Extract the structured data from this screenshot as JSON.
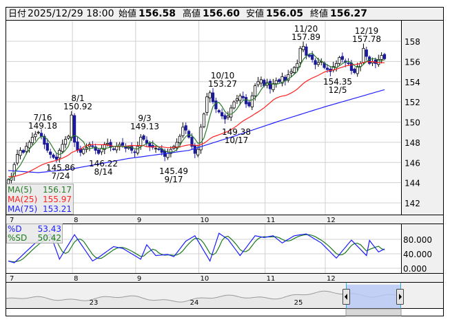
{
  "header": {
    "date_label": "日付",
    "date": "2025/12/29 18:00",
    "open_label": "始値",
    "open": "156.58",
    "high_label": "高値",
    "high": "156.60",
    "low_label": "安値",
    "low": "156.05",
    "close_label": "終値",
    "close": "156.27"
  },
  "colors": {
    "up": "#ffffff",
    "down": "#1a1a9a",
    "ma5": "#2a7a2a",
    "ma25": "#ff2020",
    "ma75": "#2020ff",
    "d": "#1a1aff",
    "sd": "#1a7a1a",
    "high_value": "#ff0000",
    "low_value": "#007000"
  },
  "legend_ma": [
    {
      "label": "MA(5)",
      "value": "156.17"
    },
    {
      "label": "MA(25)",
      "value": "155.97"
    },
    {
      "label": "MA(75)",
      "value": "153.21"
    }
  ],
  "legend_stoch": [
    {
      "label": "%D",
      "value": "53.43"
    },
    {
      "label": "%SD",
      "value": "50.42"
    }
  ],
  "annotations": [
    {
      "date": "7/16",
      "price": "149.18"
    },
    {
      "date": "8/1",
      "price": "150.92"
    },
    {
      "date": "7/24",
      "price": "145.86"
    },
    {
      "date": "8/14",
      "price": "146.22"
    },
    {
      "date": "9/3",
      "price": "149.13"
    },
    {
      "date": "9/17",
      "price": "145.49"
    },
    {
      "date": "10/10",
      "price": "153.27"
    },
    {
      "date": "10/17",
      "price": "149.38"
    },
    {
      "date": "11/20",
      "price": "157.89"
    },
    {
      "date": "12/5",
      "price": "154.35"
    },
    {
      "date": "12/19",
      "price": "157.78"
    }
  ],
  "chart_data": {
    "type": "candlestick",
    "price_axis": {
      "ticks": [
        "158",
        "156",
        "154",
        "152",
        "150",
        "148",
        "146",
        "144",
        "142"
      ],
      "range": [
        141,
        159.5
      ]
    },
    "month_labels": [
      "7",
      "8",
      "9",
      "10",
      "11",
      "12"
    ],
    "month_start_index": [
      0,
      22,
      43,
      64,
      86,
      106
    ],
    "closes": [
      144.3,
      144.6,
      145.8,
      146.8,
      147.2,
      147.0,
      147.6,
      148.0,
      148.5,
      148.8,
      149.0,
      148.6,
      147.8,
      147.2,
      146.8,
      146.5,
      146.3,
      147.2,
      147.8,
      148.3,
      148.6,
      150.7,
      148.0,
      147.2,
      147.0,
      147.3,
      147.5,
      147.8,
      147.6,
      147.2,
      146.9,
      147.4,
      147.8,
      147.9,
      147.5,
      147.3,
      147.6,
      147.8,
      147.7,
      147.4,
      147.5,
      147.2,
      147.0,
      147.6,
      148.5,
      148.3,
      147.9,
      147.6,
      147.5,
      147.4,
      147.3,
      147.0,
      146.6,
      146.9,
      147.3,
      147.6,
      148.0,
      148.6,
      149.5,
      149.2,
      148.5,
      147.6,
      146.9,
      147.3,
      149.5,
      150.8,
      152.5,
      152.9,
      152.0,
      151.3,
      151.0,
      150.6,
      150.3,
      150.6,
      151.4,
      152.0,
      152.3,
      152.6,
      152.4,
      151.8,
      151.6,
      152.6,
      153.6,
      154.0,
      154.2,
      153.6,
      153.9,
      153.3,
      153.8,
      154.1,
      154.0,
      154.5,
      154.1,
      154.7,
      155.0,
      155.4,
      155.8,
      157.3,
      157.5,
      156.6,
      156.5,
      156.2,
      155.7,
      155.9,
      156.0,
      155.4,
      155.2,
      155.0,
      155.5,
      155.8,
      156.4,
      156.2,
      155.9,
      155.8,
      155.1,
      154.9,
      155.5,
      155.8,
      157.3,
      156.5,
      155.8,
      156.0,
      155.8,
      156.2,
      156.6,
      156.27
    ],
    "ma75_points": [
      [
        0,
        145.2
      ],
      [
        10,
        145.0
      ],
      [
        20,
        145.3
      ],
      [
        40,
        146.4
      ],
      [
        60,
        147.2
      ],
      [
        75,
        148.6
      ],
      [
        90,
        150.1
      ],
      [
        105,
        151.5
      ],
      [
        125,
        153.21
      ]
    ],
    "stoch_axis": {
      "ticks": [
        "80.000",
        "40.000",
        "0.000"
      ],
      "range": [
        0,
        100
      ]
    },
    "stoch_d_points": [
      [
        0,
        20
      ],
      [
        2,
        15
      ],
      [
        9,
        70
      ],
      [
        14,
        95
      ],
      [
        17,
        25
      ],
      [
        22,
        93
      ],
      [
        28,
        20
      ],
      [
        30,
        30
      ],
      [
        35,
        60
      ],
      [
        38,
        55
      ],
      [
        44,
        25
      ],
      [
        46,
        65
      ],
      [
        49,
        35
      ],
      [
        53,
        38
      ],
      [
        55,
        32
      ],
      [
        59,
        75
      ],
      [
        62,
        90
      ],
      [
        67,
        20
      ],
      [
        70,
        97
      ],
      [
        73,
        80
      ],
      [
        77,
        35
      ],
      [
        82,
        90
      ],
      [
        85,
        85
      ],
      [
        88,
        90
      ],
      [
        91,
        70
      ],
      [
        95,
        90
      ],
      [
        99,
        95
      ],
      [
        104,
        70
      ],
      [
        109,
        28
      ],
      [
        114,
        78
      ],
      [
        119,
        35
      ],
      [
        120,
        77
      ],
      [
        123,
        45
      ],
      [
        125,
        53.43
      ]
    ],
    "navigator_year_labels": [
      "23",
      "24",
      "25"
    ]
  }
}
